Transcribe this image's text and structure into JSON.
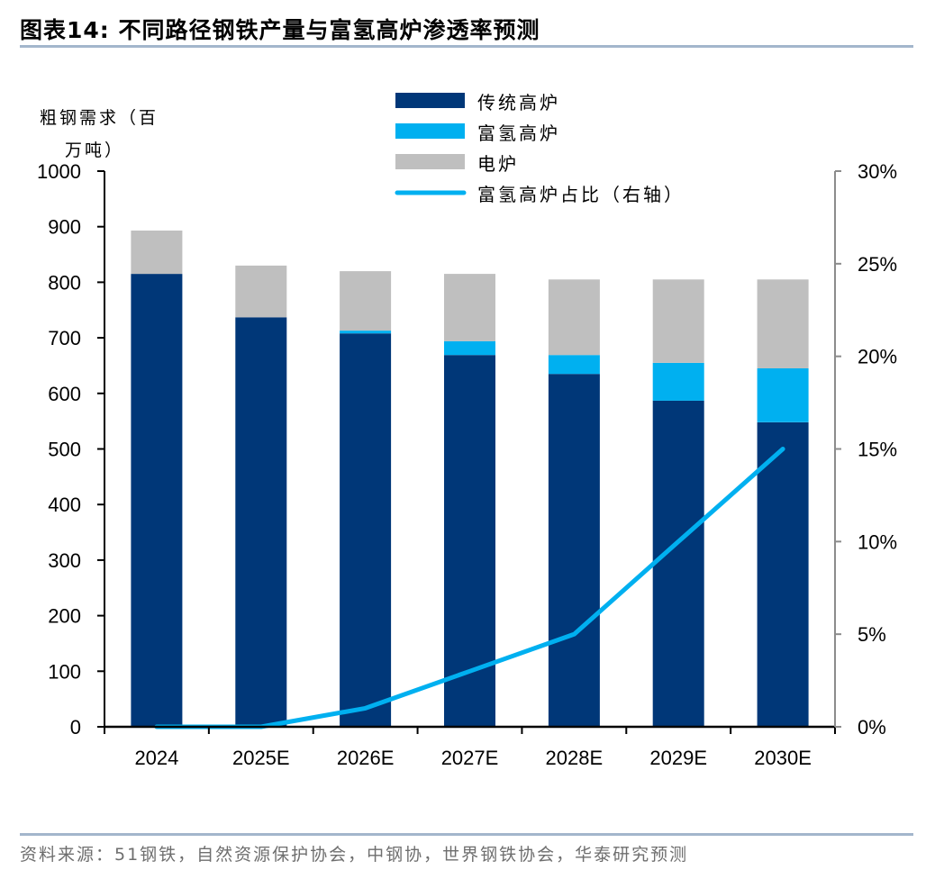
{
  "header": {
    "title": "图表14:   不同路径钢铁产量与富氢高炉渗透率预测"
  },
  "footer": {
    "source": "资料来源：51钢铁，自然资源保护协会，中钢协，世界钢铁协会，华泰研究预测"
  },
  "colors": {
    "traditional_bf": "#003778",
    "hydrogen_bf": "#00b0f0",
    "eaf": "#bfbfbf",
    "share_line": "#00b0f0",
    "right_axis": "#8c8c8c",
    "rule": "#a3b6cc"
  },
  "chart_data": {
    "type": "bar",
    "stacked": true,
    "title": "不同路径钢铁产量与富氢高炉渗透率预测",
    "categories": [
      "2024",
      "2025E",
      "2026E",
      "2027E",
      "2028E",
      "2029E",
      "2030E"
    ],
    "ylabel_lines": [
      "粗钢需求（百",
      "万吨）"
    ],
    "ylim": [
      0,
      1000
    ],
    "yticks": [
      0,
      100,
      200,
      300,
      400,
      500,
      600,
      700,
      800,
      900,
      1000
    ],
    "ytick_labels": [
      "0",
      "100",
      "200",
      "300",
      "400",
      "500",
      "600",
      "700",
      "800",
      "900",
      "1000"
    ],
    "y2lim": [
      0,
      30
    ],
    "y2ticks": [
      0,
      5,
      10,
      15,
      20,
      25,
      30
    ],
    "y2tick_labels": [
      "0%",
      "5%",
      "10%",
      "15%",
      "20%",
      "25%",
      "30%"
    ],
    "grid": false,
    "legend_position": "top-center",
    "series": [
      {
        "name": "传统高炉",
        "type": "bar",
        "axis": "left",
        "color_key": "traditional_bf",
        "values": [
          815,
          737,
          708,
          669,
          635,
          587,
          548
        ]
      },
      {
        "name": "富氢高炉",
        "type": "bar",
        "axis": "left",
        "color_key": "hydrogen_bf",
        "values": [
          0,
          0,
          5,
          25,
          34,
          68,
          97
        ]
      },
      {
        "name": "电炉",
        "type": "bar",
        "axis": "left",
        "color_key": "eaf",
        "values": [
          78,
          93,
          107,
          121,
          136,
          150,
          160
        ]
      },
      {
        "name": "富氢高炉占比（右轴）",
        "type": "line",
        "axis": "right",
        "color_key": "share_line",
        "unit": "%",
        "values": [
          0,
          0,
          1,
          3,
          5,
          10,
          15
        ]
      }
    ]
  }
}
